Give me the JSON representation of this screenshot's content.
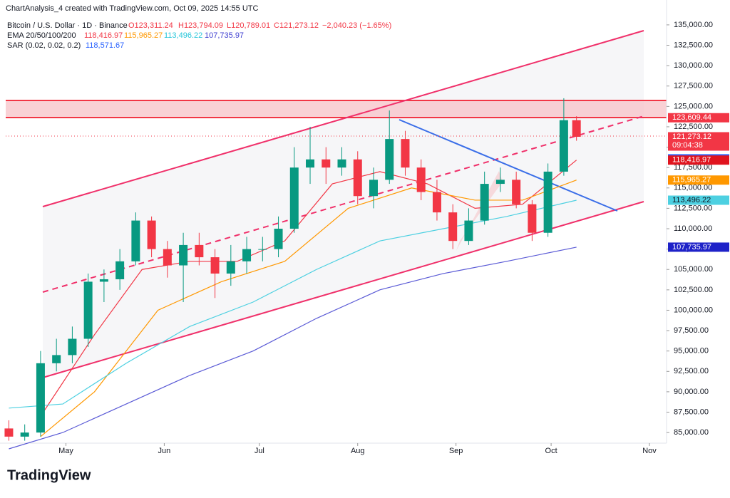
{
  "header": {
    "credit": "ChartAnalysis_4 created with TradingView.com, Oct 09, 2025 14:55 UTC",
    "symbol": "Bitcoin / U.S. Dollar · 1D · Binance",
    "ohlc_text": [
      "O123,311.24",
      "H123,794.09",
      "L120,789.01",
      "C121,273.12",
      "−2,040.23 (−1.65%)"
    ],
    "ema_label": "EMA 20/50/100/200",
    "ema_values": [
      "118,416.97",
      "115,965.27",
      "113,496.22",
      "107,735.97"
    ],
    "sar_label": "SAR (0.02, 0.02, 0.2)",
    "sar_value": "118,571.67"
  },
  "chart_data": {
    "type": "candlestick",
    "x": [
      103,
      108,
      113,
      118,
      123,
      128,
      133,
      138,
      143,
      148,
      153,
      158,
      163,
      168,
      173,
      178,
      183,
      188,
      193,
      198,
      203,
      208,
      213,
      218,
      223,
      228,
      233,
      238,
      243,
      248,
      253,
      258,
      263,
      268,
      273,
      278,
      282
    ],
    "open": [
      85500,
      84500,
      85000,
      93500,
      94500,
      96500,
      103500,
      103800,
      106000,
      111000,
      107500,
      105500,
      108000,
      106500,
      104500,
      106000,
      107500,
      107500,
      110000,
      117500,
      118500,
      117500,
      118500,
      114000,
      116000,
      121000,
      117500,
      114500,
      112000,
      108500,
      111000,
      115500,
      116000,
      113000,
      109500,
      117000,
      123311.24
    ],
    "high": [
      86500,
      86000,
      95000,
      96500,
      98000,
      104500,
      105000,
      107500,
      112000,
      111500,
      108500,
      109500,
      109500,
      107500,
      108000,
      109000,
      109000,
      111500,
      120000,
      122500,
      120000,
      120000,
      119500,
      117500,
      124500,
      122000,
      118500,
      116000,
      113000,
      112500,
      117000,
      117500,
      117000,
      113500,
      118000,
      126000,
      123794.09
    ],
    "low": [
      84000,
      84000,
      84500,
      92500,
      93500,
      95500,
      101000,
      102500,
      105500,
      106500,
      104000,
      101000,
      105500,
      101500,
      103000,
      104500,
      106000,
      106500,
      109500,
      115500,
      115500,
      116500,
      113000,
      112500,
      115500,
      116500,
      113500,
      111000,
      107500,
      108000,
      110500,
      114500,
      112500,
      108500,
      109000,
      116500,
      120789.01
    ],
    "close": [
      84500,
      85000,
      93500,
      94500,
      96500,
      103500,
      103800,
      106000,
      111000,
      107500,
      105500,
      108000,
      106500,
      104500,
      106000,
      107500,
      107500,
      110000,
      117500,
      118500,
      117500,
      118500,
      114000,
      116000,
      121000,
      117500,
      114500,
      112000,
      108500,
      111000,
      115500,
      116000,
      113000,
      109500,
      117000,
      123311.24,
      121273.12
    ],
    "up_color": "#089981",
    "down_color": "#f23645",
    "series": [
      {
        "name": "EMA 20",
        "color": "#f23645",
        "x": [
          113,
          130,
          145,
          160,
          175,
          190,
          205,
          220,
          235,
          250,
          265,
          282
        ],
        "values": [
          87000,
          97000,
          105000,
          106000,
          106000,
          108500,
          115500,
          117000,
          115500,
          112500,
          113000,
          118416.97
        ]
      },
      {
        "name": "EMA 50",
        "color": "#ff9800",
        "x": [
          113,
          130,
          150,
          170,
          190,
          210,
          230,
          250,
          265,
          282
        ],
        "values": [
          84500,
          90000,
          100000,
          103500,
          106000,
          112500,
          115000,
          113500,
          113500,
          115965.27
        ]
      },
      {
        "name": "EMA 100",
        "color": "#4dd0e1",
        "x": [
          103,
          120,
          140,
          160,
          180,
          200,
          220,
          240,
          260,
          282
        ],
        "values": [
          88000,
          88500,
          93500,
          98000,
          101000,
          105000,
          108500,
          110000,
          111500,
          113496.22
        ]
      },
      {
        "name": "EMA 200",
        "color": "#5b5bd6",
        "x": [
          103,
          120,
          140,
          160,
          180,
          200,
          220,
          240,
          260,
          282
        ],
        "values": [
          83000,
          85000,
          88500,
          92000,
          95000,
          99000,
          102500,
          104500,
          106000,
          107735.97
        ]
      }
    ],
    "xlim": [
      102,
      310.4
    ],
    "xticks": [
      {
        "value": 121,
        "label": "May"
      },
      {
        "value": 152,
        "label": "Jun"
      },
      {
        "value": 182,
        "label": "Jul"
      },
      {
        "value": 213,
        "label": "Aug"
      },
      {
        "value": 244,
        "label": "Sep"
      },
      {
        "value": 274,
        "label": "Oct"
      },
      {
        "value": 305,
        "label": "Nov"
      }
    ],
    "ylim": [
      83700,
      138050
    ],
    "yticks": [
      {
        "value": 85000,
        "label": "85,000.00"
      },
      {
        "value": 87500,
        "label": "87,500.00"
      },
      {
        "value": 90000,
        "label": "90,000.00"
      },
      {
        "value": 92500,
        "label": "92,500.00"
      },
      {
        "value": 95000,
        "label": "95,000.00"
      },
      {
        "value": 97500,
        "label": "97,500.00"
      },
      {
        "value": 100000,
        "label": "100,000.00"
      },
      {
        "value": 102500,
        "label": "102,500.00"
      },
      {
        "value": 105000,
        "label": "105,000.00"
      },
      {
        "value": 107500,
        "label": "107,500.00"
      },
      {
        "value": 110000,
        "label": "110,000.00"
      },
      {
        "value": 112500,
        "label": "112,500.00"
      },
      {
        "value": 115000,
        "label": "115,000.00"
      },
      {
        "value": 117500,
        "label": "117,500.00"
      },
      {
        "value": 120000,
        "label": "120,000.00"
      },
      {
        "value": 122500,
        "label": "122,500.00"
      },
      {
        "value": 125000,
        "label": "125,000.00"
      },
      {
        "value": 127500,
        "label": "127,500.00"
      },
      {
        "value": 130000,
        "label": "130,000.00"
      },
      {
        "value": 132500,
        "label": "132,500.00"
      },
      {
        "value": 135000,
        "label": "135,000.00"
      }
    ],
    "price_tags": [
      {
        "value": 123609.44,
        "label": "123,609.44",
        "color": "#f23645"
      },
      {
        "value": 121273.12,
        "label": "121,273.12",
        "sub": "09:04:38",
        "color": "#f23645"
      },
      {
        "value": 118571.67,
        "label": "118,571.67",
        "color": "#2962ff"
      },
      {
        "value": 118416.97,
        "label": "118,416.97",
        "color": "#e0141e"
      },
      {
        "value": 115965.27,
        "label": "115,965.27",
        "color": "#ff9800"
      },
      {
        "value": 113496.22,
        "label": "113,496.22",
        "color": "#4dd0e1"
      },
      {
        "value": 107735.97,
        "label": "107,735.97",
        "color": "#1e22c8"
      }
    ]
  },
  "footer": {
    "logo": "TradingView"
  }
}
